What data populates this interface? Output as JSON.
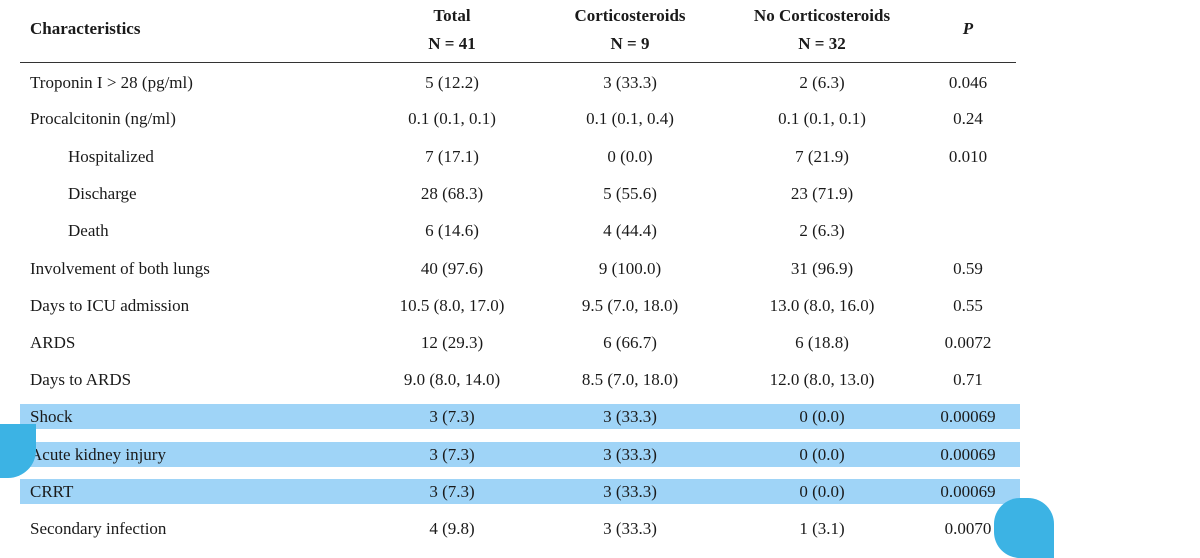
{
  "table": {
    "headers": {
      "characteristics": "Characteristics",
      "total": "Total",
      "total_n": "N = 41",
      "cortico": "Corticosteroids",
      "cortico_n": "N = 9",
      "nocortico": "No Corticosteroids",
      "nocortico_n": "N = 32",
      "p": "P"
    },
    "rows": [
      {
        "label": "Troponin I > 28 (pg/ml)",
        "total": "5 (12.2)",
        "cortico": "3 (33.3)",
        "nocortico": "2 (6.3)",
        "p": "0.046"
      },
      {
        "label": "Procalcitonin (ng/ml)",
        "total": "0.1 (0.1, 0.1)",
        "cortico": "0.1 (0.1, 0.4)",
        "nocortico": "0.1 (0.1, 0.1)",
        "p": "0.24"
      },
      {
        "label": "Hospitalized",
        "total": "7 (17.1)",
        "cortico": "0 (0.0)",
        "nocortico": "7 (21.9)",
        "p": "0.010"
      },
      {
        "label": "Discharge",
        "total": "28 (68.3)",
        "cortico": "5 (55.6)",
        "nocortico": "23 (71.9)",
        "p": ""
      },
      {
        "label": "Death",
        "total": "6 (14.6)",
        "cortico": "4 (44.4)",
        "nocortico": "2 (6.3)",
        "p": ""
      },
      {
        "label": "Involvement of both lungs",
        "total": "40 (97.6)",
        "cortico": "9 (100.0)",
        "nocortico": "31 (96.9)",
        "p": "0.59"
      },
      {
        "label": "Days to ICU admission",
        "total": "10.5 (8.0, 17.0)",
        "cortico": "9.5 (7.0, 18.0)",
        "nocortico": "13.0 (8.0, 16.0)",
        "p": "0.55"
      },
      {
        "label": "ARDS",
        "total": "12 (29.3)",
        "cortico": "6 (66.7)",
        "nocortico": "6 (18.8)",
        "p": "0.0072"
      },
      {
        "label": "Days to ARDS",
        "total": "9.0 (8.0, 14.0)",
        "cortico": "8.5 (7.0, 18.0)",
        "nocortico": "12.0 (8.0, 13.0)",
        "p": "0.71"
      },
      {
        "label": "Shock",
        "total": "3 (7.3)",
        "cortico": "3 (33.3)",
        "nocortico": "0 (0.0)",
        "p": "0.00069"
      },
      {
        "label": "Acute kidney injury",
        "total": "3 (7.3)",
        "cortico": "3 (33.3)",
        "nocortico": "0 (0.0)",
        "p": "0.00069"
      },
      {
        "label": "CRRT",
        "total": "3 (7.3)",
        "cortico": "3 (33.3)",
        "nocortico": "0 (0.0)",
        "p": "0.00069"
      },
      {
        "label": "Secondary infection",
        "total": "4 (9.8)",
        "cortico": "3 (33.3)",
        "nocortico": "1 (3.1)",
        "p": "0.0070"
      }
    ]
  },
  "highlight_color": "#9fd4f7",
  "selection_handle_color": "#3cb3e4"
}
